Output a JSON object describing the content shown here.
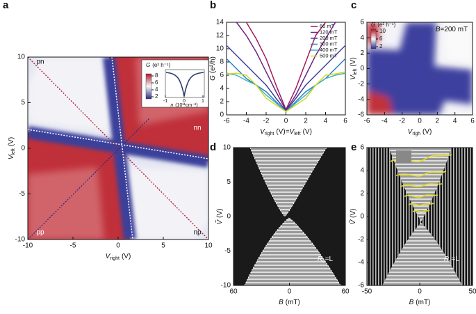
{
  "chart_data": [
    {
      "type": "heatmap",
      "panel": "a",
      "xlabel": {
        "text": "V",
        "sub": "right",
        "unit": "(V)"
      },
      "ylabel": {
        "text": "V",
        "sub": "left",
        "unit": "(V)"
      },
      "xlim": [
        -10,
        10
      ],
      "ylim": [
        -10,
        10
      ],
      "xticks": [
        -10,
        -5,
        0,
        5,
        10
      ],
      "yticks": [
        -10,
        -5,
        0,
        5,
        10
      ],
      "annotations": [
        "pn",
        "nn",
        "pp",
        "np"
      ],
      "colorbar": {
        "title": {
          "text": "G",
          "unit": "(e² h⁻¹)"
        },
        "ticks": [
          2,
          4,
          6,
          8
        ]
      },
      "inset": {
        "xlabel": {
          "text": "n",
          "unit": "(10¹¹cm⁻²)"
        },
        "xticks": [
          -1,
          0,
          1
        ]
      }
    },
    {
      "type": "line",
      "panel": "b",
      "xlabel": {
        "text": "V",
        "sub": "right",
        "unit": "(V)=",
        "after2": "V",
        "sub2": "left",
        "unit2": "(V)"
      },
      "ylabel": {
        "text": "G",
        "unit": "(e²/h)"
      },
      "xlim": [
        -6,
        6
      ],
      "ylim": [
        0,
        14
      ],
      "xticks": [
        -6,
        -4,
        -2,
        0,
        2,
        4,
        6
      ],
      "yticks": [
        0,
        2,
        4,
        6,
        8,
        10,
        12,
        14
      ],
      "x": [
        -6,
        -5,
        -4,
        -3,
        -2,
        -1,
        0,
        1,
        2,
        3,
        4,
        5,
        6
      ],
      "series": [
        {
          "name": "60 mT",
          "color": "#a3195b",
          "values": [
            null,
            null,
            14,
            11.5,
            8.5,
            4.5,
            0.8,
            4,
            8,
            12,
            14,
            null,
            null
          ]
        },
        {
          "name": "120 mT",
          "color": "#6b2387",
          "values": [
            null,
            14,
            12,
            9.5,
            6.5,
            3.5,
            0.7,
            3,
            6,
            9,
            11.5,
            14,
            null
          ]
        },
        {
          "name": "200 mT",
          "color": "#3b3f9c",
          "values": [
            10.5,
            9,
            7.5,
            6,
            4.5,
            2.5,
            0.6,
            2.5,
            4.5,
            6,
            7.5,
            9,
            10.5
          ]
        },
        {
          "name": "300 mT",
          "color": "#2b7fc0",
          "values": [
            8.5,
            7,
            5.5,
            4.5,
            3.5,
            2,
            0.5,
            2,
            3.5,
            4.5,
            5.5,
            7,
            8.5
          ]
        },
        {
          "name": "400 mT",
          "color": "#3bb7c7",
          "values": [
            6.3,
            6,
            5.2,
            4.5,
            3,
            1.8,
            0.5,
            1.8,
            3,
            4.5,
            5.5,
            6,
            6.3
          ]
        },
        {
          "name": "500 mT",
          "color": "#d6d520",
          "values": [
            6.2,
            6.3,
            6,
            4.5,
            2.5,
            1.5,
            0.5,
            1.5,
            2.5,
            4.5,
            6,
            6.2,
            6.5
          ]
        }
      ]
    },
    {
      "type": "heatmap",
      "panel": "c",
      "xlabel": {
        "text": "V",
        "sub": "righ",
        "unit": "(V)"
      },
      "ylabel": {
        "text": "V",
        "sub": "left",
        "unit": "(V)"
      },
      "xlim": [
        -6,
        6
      ],
      "ylim": [
        -6,
        6
      ],
      "xticks": [
        -6,
        -4,
        -2,
        0,
        2,
        4,
        6
      ],
      "yticks": [
        -6,
        -4,
        -2,
        0,
        2,
        4,
        6
      ],
      "colorbar": {
        "title": {
          "text": "G",
          "unit": "(e² h⁻¹)"
        },
        "ticks": [
          2,
          6,
          10
        ]
      },
      "annotations": [
        {
          "text": "B",
          "after": "=200 mT"
        }
      ]
    },
    {
      "type": "heatmap",
      "panel": "d",
      "xlabel": {
        "text": "B",
        "unit": "(mT)"
      },
      "ylabel": {
        "text": "Ṽ",
        "unit": "(V)"
      },
      "xlim": [
        -60,
        60
      ],
      "ylim": [
        -10,
        10
      ],
      "xticks": [
        {
          "value": -60,
          "label": "60"
        },
        0,
        60
      ],
      "yticks": [
        -10,
        -5,
        0,
        5,
        10
      ],
      "annotations": [
        {
          "text": "R",
          "sub": "c",
          "after": "=L"
        }
      ]
    },
    {
      "type": "heatmap",
      "panel": "e",
      "xlabel": {
        "text": "B",
        "unit": "(mT)"
      },
      "ylabel": {
        "text": "Ṽ",
        "unit": "(V)"
      },
      "xlim": [
        -50,
        50
      ],
      "ylim": [
        -6,
        6
      ],
      "xticks": [
        -50,
        0,
        50
      ],
      "yticks": [
        -6,
        -4,
        -2,
        0,
        2,
        4,
        6
      ],
      "annotations": [
        {
          "text": "R",
          "sub": "c",
          "after": "=L"
        }
      ]
    }
  ]
}
